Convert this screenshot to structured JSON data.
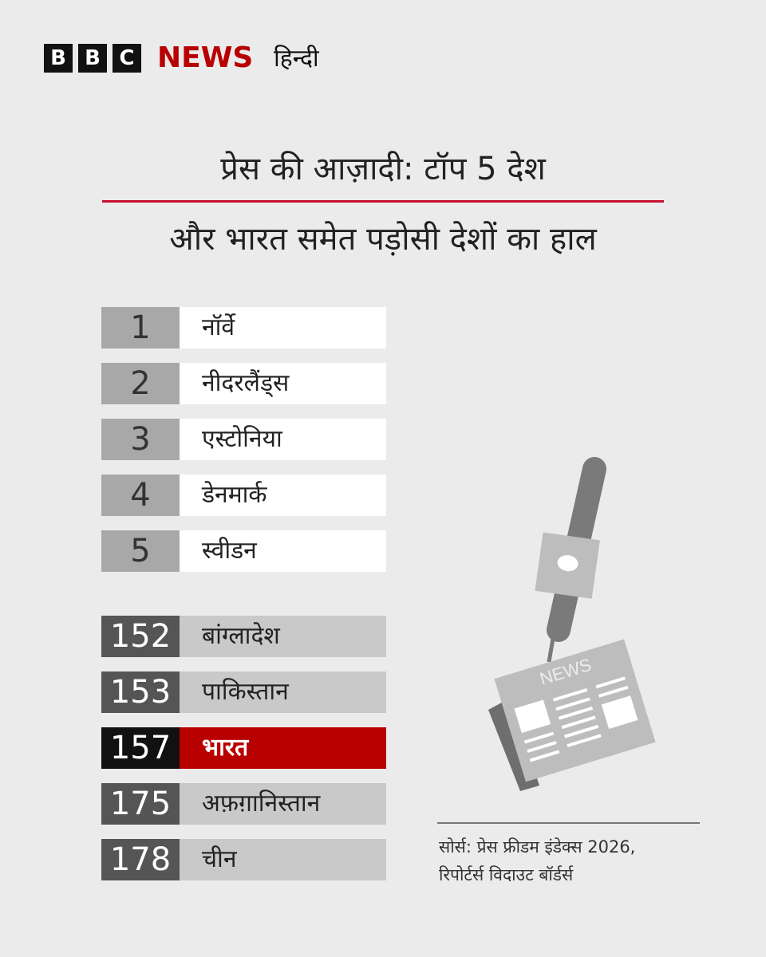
{
  "header": {
    "logo_letters": [
      "B",
      "B",
      "C"
    ],
    "brand": "NEWS",
    "language": "हिन्दी"
  },
  "title": "प्रेस की आज़ादी: टॉप 5 देश",
  "subtitle": "और भारत समेत पड़ोसी देशों का हाल",
  "top_countries": [
    {
      "rank": 1,
      "name": "नॉर्वे"
    },
    {
      "rank": 2,
      "name": "नीदरलैंड्स"
    },
    {
      "rank": 3,
      "name": "एस्टोनिया"
    },
    {
      "rank": 4,
      "name": "डेनमार्क"
    },
    {
      "rank": 5,
      "name": "स्वीडन"
    }
  ],
  "neighbours": [
    {
      "rank": 152,
      "name": "बांग्लादेश"
    },
    {
      "rank": 153,
      "name": "पाकिस्तान"
    },
    {
      "rank": 157,
      "name": "भारत",
      "highlight": true
    },
    {
      "rank": 175,
      "name": "अफ़ग़ानिस्तान"
    },
    {
      "rank": 178,
      "name": "चीन"
    }
  ],
  "illustration_text": "NEWS",
  "source": [
    "सोर्स: प्रेस फ्रीडम इंडेक्स 2026,",
    "रिपोर्टर्स विदाउट बॉर्डर्स"
  ]
}
